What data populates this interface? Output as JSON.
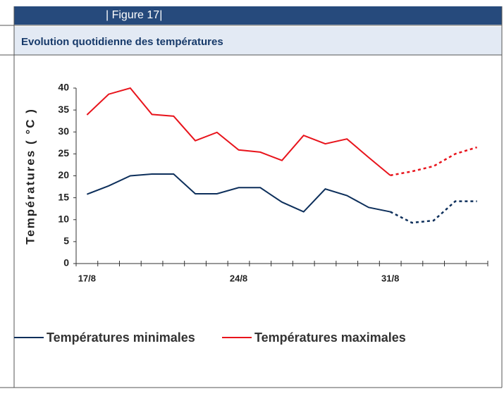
{
  "header": {
    "figure": "| Figure 17|"
  },
  "chart_data": {
    "type": "line",
    "title": "Evolution quotidienne des températures",
    "y_label": "Températures ( °C )",
    "categories": [
      "17/8",
      null,
      null,
      null,
      null,
      null,
      null,
      "24/8",
      null,
      null,
      null,
      null,
      null,
      null,
      "31/8",
      null,
      null,
      null,
      null
    ],
    "series": [
      {
        "name": "Températures minimales",
        "color": "#0d2f5b",
        "values": [
          15.8,
          17.7,
          20,
          20.4,
          20.4,
          15.9,
          15.9,
          17.3,
          17.3,
          14,
          11.8,
          17,
          15.5,
          12.8,
          11.8,
          null,
          null,
          null,
          null
        ],
        "projected_values": [
          null,
          null,
          null,
          null,
          null,
          null,
          null,
          null,
          null,
          null,
          null,
          null,
          null,
          null,
          11.8,
          9.3,
          9.8,
          14.2,
          14.2
        ]
      },
      {
        "name": "Températures maximales",
        "color": "#e8141c",
        "values": [
          33.9,
          38.6,
          40,
          34,
          33.6,
          28,
          29.9,
          25.9,
          25.4,
          23.5,
          29.2,
          27.3,
          28.4,
          24.2,
          20.1,
          null,
          null,
          null,
          null
        ],
        "projected_values": [
          null,
          null,
          null,
          null,
          null,
          null,
          null,
          null,
          null,
          null,
          null,
          null,
          null,
          null,
          20.1,
          21,
          22.2,
          25,
          26.5
        ]
      }
    ],
    "ylim": [
      0,
      40
    ],
    "yticks": [
      0,
      5,
      10,
      15,
      20,
      25,
      30,
      35,
      40
    ],
    "grid": false
  }
}
